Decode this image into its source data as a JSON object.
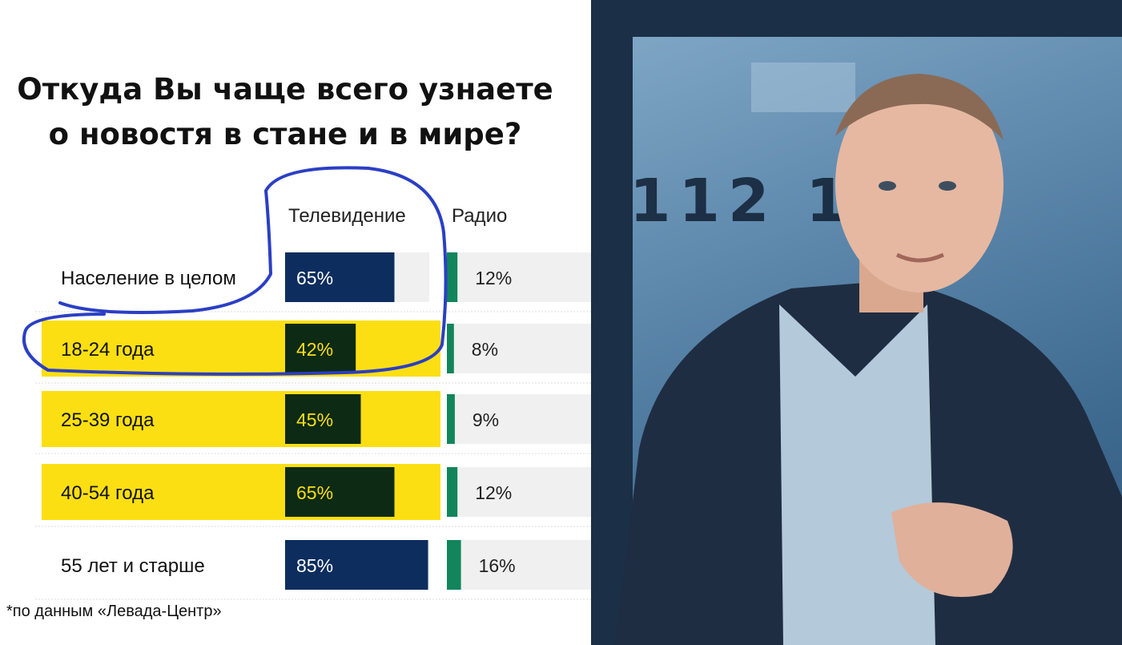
{
  "slide": {
    "title": "Откуда Вы чаще всего узнаете\nо новостя в стане и в мире?",
    "footnote": "*по данным «Левада-Центр»"
  },
  "colors": {
    "tv_bar": "#0c2d5e",
    "tv_bar_highlight": "#0c2a14",
    "radio_bar": "#12855d",
    "bar_track": "#f0f0f0",
    "highlight": "#fcdf12",
    "annotation": "#2b3fc4",
    "video_bg": "#1b2f47"
  },
  "chart_data": {
    "type": "bar",
    "title": "Откуда Вы чаще всего узнаете о новостя в стане и в мире?",
    "categories": [
      "Население в целом",
      "18-24 года",
      "25-39 года",
      "40-54 года",
      "55 лет и старше"
    ],
    "highlighted_categories": [
      "18-24 года",
      "25-39 года",
      "40-54 года"
    ],
    "series": [
      {
        "name": "Телевидение",
        "values": [
          65,
          42,
          45,
          65,
          85
        ],
        "labels": [
          "65%",
          "42%",
          "45%",
          "65%",
          "85%"
        ]
      },
      {
        "name": "Радио",
        "values": [
          12,
          8,
          9,
          12,
          16
        ],
        "labels": [
          "12%",
          "8%",
          "9%",
          "12%",
          "16%"
        ]
      }
    ],
    "unit": "%",
    "ylim": [
      0,
      100
    ],
    "annotation": "hand-drawn blue outline around the Телевидение column and the 18-24 года row"
  },
  "video": {
    "background_text": "112 1",
    "icon": "presenter-video-frame"
  }
}
